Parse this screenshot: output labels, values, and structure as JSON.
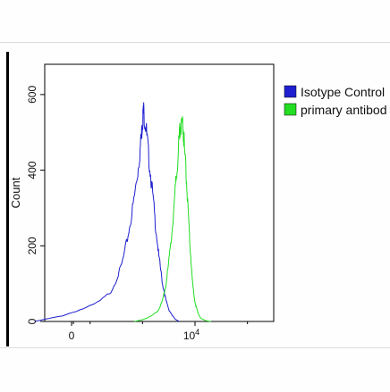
{
  "chart_data": {
    "type": "line",
    "title": "",
    "ylabel": "Count",
    "xlabel": "",
    "x_scale": "logicle",
    "ylim": [
      0,
      680
    ],
    "y_ticks": [
      0,
      200,
      400,
      600
    ],
    "y_tick_labels": [
      "0",
      "200",
      "400",
      "600"
    ],
    "x_ticks": [
      0,
      10000
    ],
    "x_tick_labels": [
      {
        "base": "0",
        "sup": ""
      },
      {
        "base": "10",
        "sup": "4"
      }
    ],
    "legend": {
      "placement": "top-right, outside plot",
      "entries": [
        {
          "label": "Isotype Control",
          "color": "#1f1fd0"
        },
        {
          "label": "primary antibod",
          "color": "#22dd22"
        }
      ]
    },
    "series": [
      {
        "name": "Isotype Control",
        "color": "#1f1fd0",
        "points": [
          [
            -200,
            0
          ],
          [
            -50,
            15
          ],
          [
            100,
            40
          ],
          [
            250,
            80
          ],
          [
            400,
            150
          ],
          [
            550,
            240
          ],
          [
            700,
            330
          ],
          [
            850,
            420
          ],
          [
            950,
            490
          ],
          [
            1000,
            535
          ],
          [
            1050,
            555
          ],
          [
            1150,
            520
          ],
          [
            1300,
            440
          ],
          [
            1500,
            360
          ],
          [
            1750,
            260
          ],
          [
            2050,
            170
          ],
          [
            2400,
            100
          ],
          [
            2800,
            55
          ],
          [
            3200,
            30
          ],
          [
            3700,
            15
          ],
          [
            4300,
            5
          ],
          [
            5000,
            0
          ]
        ]
      },
      {
        "name": "primary antibod",
        "color": "#22dd22",
        "points": [
          [
            700,
            0
          ],
          [
            1000,
            5
          ],
          [
            1500,
            15
          ],
          [
            2000,
            30
          ],
          [
            2400,
            55
          ],
          [
            2800,
            100
          ],
          [
            3300,
            180
          ],
          [
            3800,
            270
          ],
          [
            4300,
            370
          ],
          [
            4800,
            450
          ],
          [
            5200,
            510
          ],
          [
            5500,
            530
          ],
          [
            5900,
            520
          ],
          [
            6300,
            460
          ],
          [
            6900,
            370
          ],
          [
            7500,
            270
          ],
          [
            8200,
            180
          ],
          [
            9000,
            100
          ],
          [
            10000,
            50
          ],
          [
            11500,
            20
          ],
          [
            13000,
            8
          ],
          [
            16000,
            2
          ],
          [
            20000,
            0
          ]
        ]
      }
    ]
  }
}
